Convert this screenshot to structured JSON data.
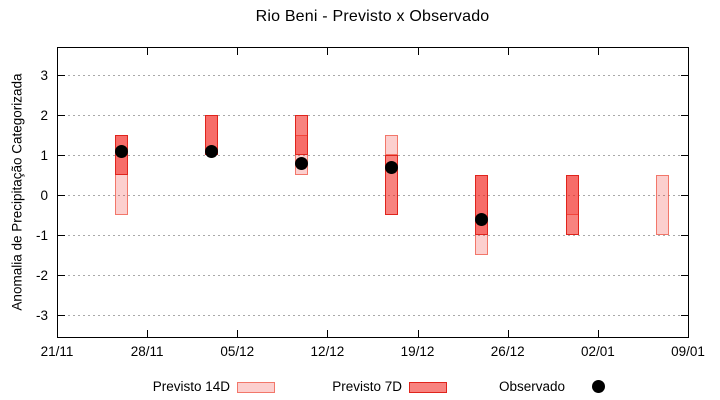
{
  "chart_data": {
    "type": "ranged-bar-with-points",
    "title": "Rio Beni - Previsto x Observado",
    "ylabel": "Anomalia de Precipitação Categorizada",
    "xlabel": "",
    "ylim": [
      -3.55,
      3.7
    ],
    "grid": true,
    "legend_position": "bottom",
    "y_ticks": [
      3,
      2,
      1,
      0,
      -1,
      -2,
      -3
    ],
    "x_ticks": [
      {
        "label": "21/11",
        "day": 0
      },
      {
        "label": "28/11",
        "day": 7
      },
      {
        "label": "05/12",
        "day": 14
      },
      {
        "label": "12/12",
        "day": 21
      },
      {
        "label": "19/12",
        "day": 28
      },
      {
        "label": "26/12",
        "day": 35
      },
      {
        "label": "02/01",
        "day": 42
      },
      {
        "label": "09/01",
        "day": 49
      }
    ],
    "series": [
      {
        "name": "Previsto 14D",
        "type": "range-bar",
        "fill": "rgba(242,30,22,0.21)",
        "border": "rgba(238,85,68,0.72)"
      },
      {
        "name": "Previsto 7D",
        "type": "range-bar",
        "fill": "rgba(242,30,22,0.55)",
        "border": "#e0241c"
      },
      {
        "name": "Observado",
        "type": "point",
        "color": "#000000"
      }
    ],
    "groups": [
      {
        "date": "26/11",
        "day": 5,
        "previsto_14d": [
          -0.5,
          1.5
        ],
        "previsto_7d": [
          0.5,
          1.5
        ],
        "observado": 1.1
      },
      {
        "date": "03/12",
        "day": 12,
        "previsto_14d": [
          1.0,
          2.0
        ],
        "previsto_7d": [
          1.0,
          2.0
        ],
        "observado": 1.1
      },
      {
        "date": "10/12",
        "day": 19,
        "previsto_14d": [
          0.5,
          1.5
        ],
        "previsto_7d": [
          1.0,
          2.0
        ],
        "observado": 0.8
      },
      {
        "date": "17/12",
        "day": 26,
        "previsto_14d": [
          1.0,
          1.5
        ],
        "previsto_7d": [
          -0.5,
          1.0
        ],
        "observado": 0.7
      },
      {
        "date": "24/12",
        "day": 33,
        "previsto_14d": [
          -1.5,
          0.5
        ],
        "previsto_7d": [
          -1.0,
          0.5
        ],
        "observado": -0.6
      },
      {
        "date": "31/12",
        "day": 40,
        "previsto_14d": [
          -0.5,
          0.5
        ],
        "previsto_7d": [
          -1.0,
          0.5
        ],
        "observado": null
      },
      {
        "date": "07/01",
        "day": 47,
        "previsto_14d": [
          -1.0,
          0.5
        ],
        "previsto_7d": null,
        "observado": null
      }
    ]
  }
}
